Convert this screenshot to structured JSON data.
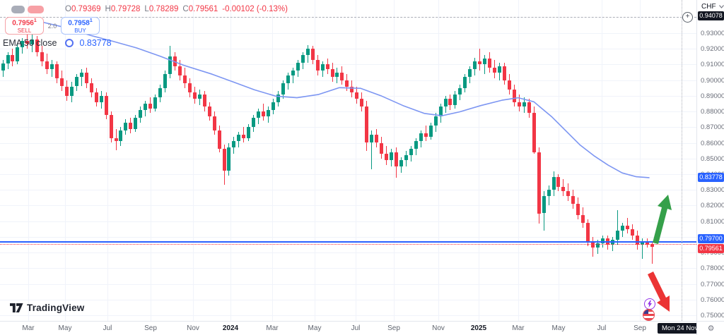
{
  "legend": {
    "items": {
      "o_label": "O",
      "o": "0.79369",
      "h_label": "H",
      "h": "0.79728",
      "l_label": "L",
      "l": "0.78289",
      "c_label": "C",
      "c": "0.79561",
      "change": "-0.00102 (-0.13%)"
    },
    "indicator_name": "EMA 50 close",
    "indicator_value": "0.83778"
  },
  "trade_panel": {
    "sell_price": "0.7956",
    "sell_sup": "1",
    "sell_label": "SELL",
    "spread": "2.0",
    "buy_price": "0.7958",
    "buy_sup": "1",
    "buy_label": "BUY"
  },
  "price_scale": {
    "currency": "CHF",
    "ticks": [
      "0.93000",
      "0.92000",
      "0.91000",
      "0.90000",
      "0.89000",
      "0.88000",
      "0.87000",
      "0.86000",
      "0.85000",
      "0.84000",
      "0.83000",
      "0.82000",
      "0.81000",
      "0.79000",
      "0.78000",
      "0.77000",
      "0.76000",
      "0.75000"
    ],
    "badges": {
      "crosshair": "0.94078",
      "ema": "0.83778",
      "line": "0.79700",
      "last": "0.79561"
    }
  },
  "time_scale": {
    "labels": [
      [
        "Mar",
        40
      ],
      [
        "May",
        92
      ],
      [
        "Jul",
        152
      ],
      [
        "Sep",
        213
      ],
      [
        "Nov",
        273
      ],
      [
        "2024",
        326
      ],
      [
        "Mar",
        385
      ],
      [
        "May",
        445
      ],
      [
        "Jul",
        503
      ],
      [
        "Sep",
        557
      ],
      [
        "Nov",
        620
      ],
      [
        "2025",
        677
      ],
      [
        "Mar",
        733
      ],
      [
        "May",
        790
      ],
      [
        "Jul",
        851
      ],
      [
        "Sep",
        905
      ]
    ],
    "crosshair_date": "Mon 24 Nov '25"
  },
  "watermark": {
    "brand": "TradingView"
  },
  "colors": {
    "up": "#089981",
    "down": "#F23645",
    "accent_blue": "#2962FF",
    "ema_line": "#7D96F2",
    "badge_dark": "#131722",
    "axis_text": "#6A6E79",
    "arrow_up": "#35A04A",
    "arrow_down": "#EB3434",
    "grid": "#F0F3FA"
  },
  "chart_data": {
    "type": "candlestick",
    "quote_currency": "CHF",
    "ylim": [
      0.745,
      0.945
    ],
    "grid": true,
    "horizontal_line_price": 0.797,
    "current_price": 0.79561,
    "crosshair": {
      "price": 0.94078,
      "date": "Mon 24 Nov '25"
    },
    "last_bar": {
      "open": 0.79369,
      "high": 0.79728,
      "low": 0.78289,
      "close": 0.79561,
      "change": -0.00102,
      "change_pct": -0.13
    },
    "annotations": [
      {
        "type": "arrow",
        "direction": "up",
        "color": "green"
      },
      {
        "type": "arrow",
        "direction": "down",
        "color": "red"
      }
    ],
    "ema": {
      "name": "EMA 50 close",
      "value": 0.83778,
      "path": [
        [
          60,
          0.937
        ],
        [
          93,
          0.9335
        ],
        [
          127,
          0.9287
        ],
        [
          160,
          0.9248
        ],
        [
          193,
          0.9206
        ],
        [
          227,
          0.9152
        ],
        [
          260,
          0.9095
        ],
        [
          300,
          0.9038
        ],
        [
          330,
          0.8988
        ],
        [
          360,
          0.8938
        ],
        [
          390,
          0.8898
        ],
        [
          420,
          0.8888
        ],
        [
          450,
          0.8908
        ],
        [
          480,
          0.8952
        ],
        [
          510,
          0.8948
        ],
        [
          540,
          0.8898
        ],
        [
          570,
          0.8838
        ],
        [
          600,
          0.8788
        ],
        [
          625,
          0.8773
        ],
        [
          650,
          0.8798
        ],
        [
          680,
          0.8838
        ],
        [
          710,
          0.8872
        ],
        [
          733,
          0.8888
        ],
        [
          755,
          0.8862
        ],
        [
          780,
          0.8768
        ],
        [
          800,
          0.8678
        ],
        [
          820,
          0.8588
        ],
        [
          840,
          0.8518
        ],
        [
          860,
          0.8458
        ],
        [
          880,
          0.8408
        ],
        [
          900,
          0.8384
        ],
        [
          918,
          0.8378
        ]
      ]
    },
    "candles": [
      [
        0.906,
        0.913,
        0.902,
        0.9105
      ],
      [
        0.9105,
        0.918,
        0.907,
        0.916
      ],
      [
        0.916,
        0.92,
        0.909,
        0.912
      ],
      [
        0.912,
        0.923,
        0.91,
        0.921
      ],
      [
        0.921,
        0.927,
        0.917,
        0.925
      ],
      [
        0.925,
        0.9296,
        0.92,
        0.923
      ],
      [
        0.923,
        0.929,
        0.918,
        0.926
      ],
      [
        0.926,
        0.928,
        0.915,
        0.918
      ],
      [
        0.918,
        0.922,
        0.909,
        0.912
      ],
      [
        0.912,
        0.917,
        0.904,
        0.907
      ],
      [
        0.907,
        0.913,
        0.902,
        0.91
      ],
      [
        0.91,
        0.912,
        0.898,
        0.901
      ],
      [
        0.901,
        0.906,
        0.893,
        0.896
      ],
      [
        0.896,
        0.9,
        0.887,
        0.89
      ],
      [
        0.89,
        0.899,
        0.886,
        0.896
      ],
      [
        0.896,
        0.904,
        0.893,
        0.902
      ],
      [
        0.902,
        0.907,
        0.896,
        0.905
      ],
      [
        0.905,
        0.908,
        0.895,
        0.898
      ],
      [
        0.898,
        0.901,
        0.889,
        0.892
      ],
      [
        0.892,
        0.895,
        0.883,
        0.886
      ],
      [
        0.886,
        0.893,
        0.882,
        0.89
      ],
      [
        0.89,
        0.892,
        0.875,
        0.878
      ],
      [
        0.878,
        0.88,
        0.86,
        0.863
      ],
      [
        0.863,
        0.869,
        0.8552,
        0.861
      ],
      [
        0.861,
        0.87,
        0.858,
        0.868
      ],
      [
        0.868,
        0.875,
        0.865,
        0.873
      ],
      [
        0.873,
        0.876,
        0.866,
        0.869
      ],
      [
        0.869,
        0.878,
        0.867,
        0.876
      ],
      [
        0.876,
        0.883,
        0.873,
        0.881
      ],
      [
        0.881,
        0.887,
        0.877,
        0.885
      ],
      [
        0.885,
        0.889,
        0.879,
        0.882
      ],
      [
        0.882,
        0.891,
        0.88,
        0.889
      ],
      [
        0.889,
        0.897,
        0.886,
        0.895
      ],
      [
        0.895,
        0.906,
        0.892,
        0.904
      ],
      [
        0.904,
        0.922,
        0.901,
        0.915
      ],
      [
        0.915,
        0.918,
        0.906,
        0.909
      ],
      [
        0.909,
        0.913,
        0.9,
        0.903
      ],
      [
        0.903,
        0.908,
        0.895,
        0.898
      ],
      [
        0.898,
        0.901,
        0.889,
        0.892
      ],
      [
        0.892,
        0.896,
        0.885,
        0.888
      ],
      [
        0.888,
        0.894,
        0.884,
        0.891
      ],
      [
        0.891,
        0.893,
        0.88,
        0.883
      ],
      [
        0.883,
        0.886,
        0.874,
        0.877
      ],
      [
        0.877,
        0.88,
        0.865,
        0.868
      ],
      [
        0.868,
        0.871,
        0.854,
        0.856
      ],
      [
        0.856,
        0.859,
        0.8333,
        0.842
      ],
      [
        0.842,
        0.86,
        0.839,
        0.857
      ],
      [
        0.857,
        0.864,
        0.853,
        0.861
      ],
      [
        0.861,
        0.867,
        0.857,
        0.865
      ],
      [
        0.865,
        0.87,
        0.86,
        0.863
      ],
      [
        0.863,
        0.872,
        0.861,
        0.87
      ],
      [
        0.87,
        0.878,
        0.867,
        0.876
      ],
      [
        0.876,
        0.882,
        0.872,
        0.88
      ],
      [
        0.88,
        0.885,
        0.874,
        0.877
      ],
      [
        0.877,
        0.883,
        0.873,
        0.881
      ],
      [
        0.881,
        0.888,
        0.878,
        0.886
      ],
      [
        0.886,
        0.893,
        0.883,
        0.891
      ],
      [
        0.891,
        0.9,
        0.888,
        0.898
      ],
      [
        0.898,
        0.905,
        0.894,
        0.903
      ],
      [
        0.903,
        0.908,
        0.898,
        0.906
      ],
      [
        0.906,
        0.913,
        0.902,
        0.911
      ],
      [
        0.911,
        0.918,
        0.907,
        0.916
      ],
      [
        0.916,
        0.9224,
        0.911,
        0.92
      ],
      [
        0.92,
        0.922,
        0.91,
        0.913
      ],
      [
        0.913,
        0.916,
        0.903,
        0.906
      ],
      [
        0.906,
        0.912,
        0.902,
        0.91
      ],
      [
        0.91,
        0.914,
        0.904,
        0.907
      ],
      [
        0.907,
        0.911,
        0.899,
        0.902
      ],
      [
        0.902,
        0.908,
        0.898,
        0.905
      ],
      [
        0.905,
        0.909,
        0.897,
        0.9
      ],
      [
        0.9,
        0.904,
        0.893,
        0.896
      ],
      [
        0.896,
        0.9,
        0.889,
        0.892
      ],
      [
        0.892,
        0.896,
        0.885,
        0.888
      ],
      [
        0.888,
        0.892,
        0.88,
        0.883
      ],
      [
        0.883,
        0.887,
        0.855,
        0.86
      ],
      [
        0.86,
        0.868,
        0.843,
        0.865
      ],
      [
        0.865,
        0.869,
        0.857,
        0.86
      ],
      [
        0.86,
        0.864,
        0.85,
        0.853
      ],
      [
        0.853,
        0.858,
        0.846,
        0.849
      ],
      [
        0.849,
        0.856,
        0.845,
        0.854
      ],
      [
        0.854,
        0.857,
        0.8375,
        0.845
      ],
      [
        0.845,
        0.851,
        0.841,
        0.849
      ],
      [
        0.849,
        0.855,
        0.845,
        0.852
      ],
      [
        0.852,
        0.858,
        0.848,
        0.856
      ],
      [
        0.856,
        0.863,
        0.852,
        0.861
      ],
      [
        0.861,
        0.868,
        0.857,
        0.866
      ],
      [
        0.866,
        0.871,
        0.861,
        0.864
      ],
      [
        0.864,
        0.873,
        0.862,
        0.871
      ],
      [
        0.871,
        0.879,
        0.867,
        0.877
      ],
      [
        0.877,
        0.885,
        0.873,
        0.883
      ],
      [
        0.883,
        0.89,
        0.879,
        0.888
      ],
      [
        0.888,
        0.891,
        0.881,
        0.884
      ],
      [
        0.884,
        0.893,
        0.882,
        0.891
      ],
      [
        0.891,
        0.897,
        0.887,
        0.895
      ],
      [
        0.895,
        0.904,
        0.892,
        0.902
      ],
      [
        0.902,
        0.909,
        0.898,
        0.907
      ],
      [
        0.907,
        0.9144,
        0.903,
        0.912
      ],
      [
        0.912,
        0.92,
        0.906,
        0.91
      ],
      [
        0.91,
        0.916,
        0.904,
        0.914
      ],
      [
        0.914,
        0.918,
        0.905,
        0.908
      ],
      [
        0.908,
        0.913,
        0.901,
        0.905
      ],
      [
        0.905,
        0.911,
        0.9,
        0.909
      ],
      [
        0.909,
        0.911,
        0.897,
        0.9
      ],
      [
        0.9,
        0.904,
        0.891,
        0.894
      ],
      [
        0.894,
        0.897,
        0.883,
        0.886
      ],
      [
        0.886,
        0.891,
        0.88,
        0.883
      ],
      [
        0.883,
        0.889,
        0.879,
        0.886
      ],
      [
        0.886,
        0.888,
        0.876,
        0.879
      ],
      [
        0.879,
        0.883,
        0.853,
        0.854
      ],
      [
        0.854,
        0.857,
        0.8085,
        0.815
      ],
      [
        0.815,
        0.829,
        0.804,
        0.826
      ],
      [
        0.826,
        0.833,
        0.82,
        0.83
      ],
      [
        0.83,
        0.842,
        0.826,
        0.838
      ],
      [
        0.838,
        0.84,
        0.829,
        0.832
      ],
      [
        0.832,
        0.837,
        0.826,
        0.829
      ],
      [
        0.829,
        0.834,
        0.823,
        0.826
      ],
      [
        0.826,
        0.83,
        0.818,
        0.821
      ],
      [
        0.821,
        0.825,
        0.811,
        0.814
      ],
      [
        0.814,
        0.819,
        0.806,
        0.809
      ],
      [
        0.809,
        0.811,
        0.794,
        0.797
      ],
      [
        0.797,
        0.8,
        0.7872,
        0.793
      ],
      [
        0.793,
        0.798,
        0.789,
        0.796
      ],
      [
        0.796,
        0.801,
        0.793,
        0.799
      ],
      [
        0.799,
        0.801,
        0.792,
        0.795
      ],
      [
        0.795,
        0.8,
        0.791,
        0.798
      ],
      [
        0.798,
        0.817,
        0.795,
        0.804
      ],
      [
        0.804,
        0.809,
        0.8,
        0.807
      ],
      [
        0.807,
        0.812,
        0.802,
        0.805
      ],
      [
        0.805,
        0.808,
        0.798,
        0.801
      ],
      [
        0.801,
        0.804,
        0.792,
        0.795
      ],
      [
        0.795,
        0.799,
        0.786,
        0.797
      ],
      [
        0.797,
        0.799,
        0.793,
        0.795
      ],
      [
        0.79369,
        0.79728,
        0.78289,
        0.79561,
        "red"
      ]
    ]
  }
}
